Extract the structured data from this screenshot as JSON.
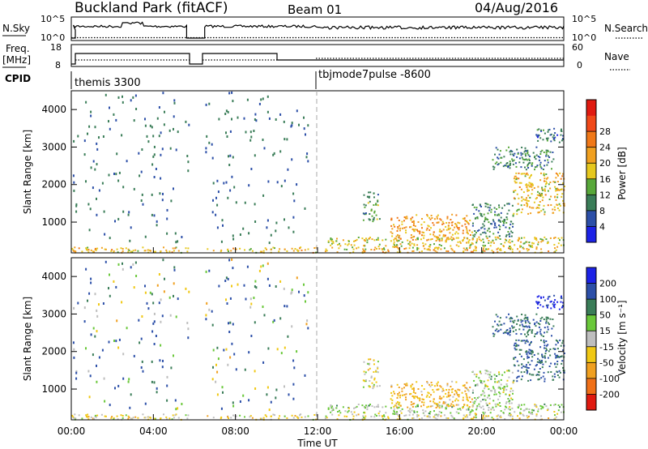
{
  "header": {
    "title": "Buckland Park (fitACF)",
    "beam": "Beam 01",
    "date": "04/Aug/2016"
  },
  "panels": {
    "noise": {
      "left_label": "N.Sky",
      "left_ticks": [
        "10^5",
        "10^0"
      ],
      "right_label": "N.Search",
      "right_ticks": [
        "10^5",
        "10^0"
      ]
    },
    "freq": {
      "left_label": "Freq.",
      "left_unit": "[MHz]",
      "left_ticks": [
        "18",
        "8"
      ],
      "right_label": "Nave",
      "right_ticks": [
        "60",
        "0"
      ]
    },
    "cpid": {
      "label": "CPID",
      "modes": [
        "themis 3300",
        "tbjmode7pulse -8600"
      ]
    }
  },
  "x_axis": {
    "label": "Time UT",
    "ticks": [
      "00:00",
      "04:00",
      "08:00",
      "12:00",
      "16:00",
      "20:00",
      "00:00"
    ]
  },
  "range_axis": {
    "label": "Slant Range [km]",
    "ticks": [
      "1000",
      "2000",
      "3000",
      "4000"
    ]
  },
  "power_scale": {
    "label": "Power [dB]",
    "ticks": [
      "4",
      "8",
      "12",
      "16",
      "20",
      "24",
      "28"
    ],
    "colors": [
      "#1c22e6",
      "#2c4fa8",
      "#3a7d58",
      "#58a83a",
      "#e6c81e",
      "#f0a020",
      "#f07818",
      "#f04818",
      "#e01a10"
    ]
  },
  "velocity_scale": {
    "label": "Velocity [m s⁻¹]",
    "ticks": [
      "200",
      "100",
      "50",
      "15",
      "-15",
      "-50",
      "-100",
      "-200"
    ],
    "colors": [
      "#1c22e6",
      "#2c4fa8",
      "#3a7d58",
      "#6ac83a",
      "#bebebe",
      "#f0c814",
      "#f0a020",
      "#f07018",
      "#e01a10"
    ]
  },
  "chart_data": {
    "type": "heatmap",
    "title": "Buckland Park (fitACF)",
    "xlabel": "Time UT",
    "ylabel": "Slant Range [km]",
    "xlim": [
      "00:00",
      "24:00"
    ],
    "ylim": [
      180,
      4500
    ],
    "cpid_changes": [
      {
        "time": 0,
        "mode": "themis 3300"
      },
      {
        "time": 12,
        "mode": "tbjmode7pulse -8600"
      }
    ],
    "data_gaps": [
      [
        5.7,
        6.5
      ]
    ],
    "echo_regions": [
      {
        "t": [
          0,
          24
        ],
        "r": [
          180,
          330
        ],
        "power": 20,
        "velocity": -15
      },
      {
        "t": [
          12.5,
          24
        ],
        "r": [
          330,
          600
        ],
        "power": 18,
        "velocity": 15
      },
      {
        "t": [
          14.2,
          15.0
        ],
        "r": [
          1000,
          1800
        ],
        "power": 12,
        "velocity": -15
      },
      {
        "t": [
          15.5,
          19.5
        ],
        "r": [
          500,
          1200
        ],
        "power": 22,
        "velocity": -50
      },
      {
        "t": [
          19.5,
          21.5
        ],
        "r": [
          600,
          1500
        ],
        "power": 10,
        "velocity": 15
      },
      {
        "t": [
          21.5,
          24
        ],
        "r": [
          1200,
          2300
        ],
        "power": 20,
        "velocity": 100
      },
      {
        "t": [
          20.5,
          23.5
        ],
        "r": [
          2400,
          3000
        ],
        "power": 10,
        "velocity": 100
      },
      {
        "t": [
          22.5,
          24
        ],
        "r": [
          3100,
          3500
        ],
        "power": 8,
        "velocity": 200
      }
    ]
  }
}
